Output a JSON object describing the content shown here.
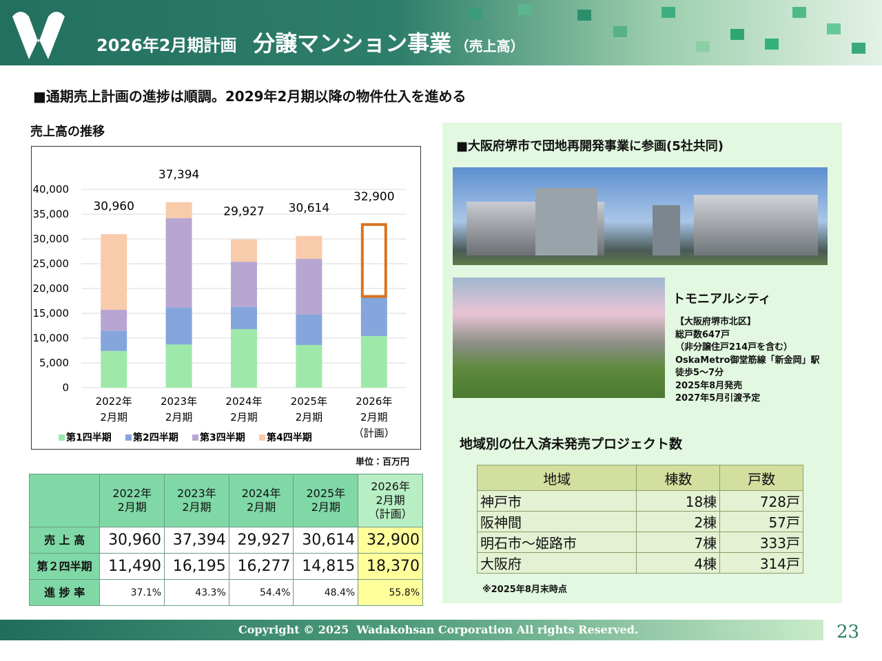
{
  "header": {
    "period": "2026年2月期計画",
    "title": "分譲マンション事業",
    "subtitle": "（売上高）"
  },
  "headline": "■通期売上計画の進捗は順調。2029年2月期以降の物件仕入を進める",
  "chart_data": {
    "type": "stacked-bar",
    "title": "売上高の推移",
    "unit_note": "単位：百万円",
    "categories": [
      [
        "2022年",
        "2月期"
      ],
      [
        "2023年",
        "2月期"
      ],
      [
        "2024年",
        "2月期"
      ],
      [
        "2025年",
        "2月期"
      ],
      [
        "2026年",
        "2月期",
        "（計画）"
      ]
    ],
    "series": [
      {
        "name": "第1四半期",
        "color": "#9ee9a9",
        "values": [
          7400,
          8700,
          11800,
          8600,
          10400
        ]
      },
      {
        "name": "第2四半期",
        "color": "#85a6dc",
        "values": [
          4100,
          7500,
          4500,
          6200,
          8000
        ]
      },
      {
        "name": "第3四半期",
        "color": "#b8a6d2",
        "values": [
          4200,
          18000,
          9100,
          11200,
          null
        ]
      },
      {
        "name": "第4四半期",
        "color": "#f8cbab",
        "values": [
          15260,
          3200,
          4500,
          4600,
          null
        ]
      }
    ],
    "totals": {
      "values": [
        30960,
        37394,
        29927,
        30614,
        32900
      ],
      "value_labels": [
        "30,960",
        "37,394",
        "29,927",
        "30,614",
        "32,900"
      ]
    },
    "outline_color": "#d9731f",
    "ylim": [
      0,
      40000
    ],
    "yticks": [
      0,
      {
        "value": 5000,
        "label": "5,000"
      },
      {
        "value": 10000,
        "label": "10,000"
      },
      {
        "value": 15000,
        "label": "15,000"
      },
      {
        "value": 20000,
        "label": "20,000"
      },
      {
        "value": 25000,
        "label": "25,000"
      },
      {
        "value": 30000,
        "label": "30,000"
      },
      {
        "value": 35000,
        "label": "35,000"
      },
      {
        "value": 40000,
        "label": "40,000"
      }
    ],
    "grid": true
  },
  "sales_table": {
    "columns": [
      [
        "2022年",
        "2月期"
      ],
      [
        "2023年",
        "2月期"
      ],
      [
        "2024年",
        "2月期"
      ],
      [
        "2025年",
        "2月期"
      ],
      [
        "2026年",
        "2月期",
        "（計画）"
      ]
    ],
    "rows": [
      {
        "label": "売 上 高",
        "cells": [
          "30,960",
          "37,394",
          "29,927",
          "30,614",
          "32,900"
        ]
      },
      {
        "label": "第２四半期",
        "cells": [
          "11,490",
          "16,195",
          "16,277",
          "14,815",
          "18,370"
        ]
      },
      {
        "label": "進 捗 率",
        "cells": [
          "37.1%",
          "43.3%",
          "54.4%",
          "48.4%",
          "55.8%"
        ]
      }
    ]
  },
  "project": {
    "heading": "■大阪府堺市で団地再開発事業に参画(5社共同)",
    "name": "トモニアルシティ",
    "details": [
      "【大阪府堺市北区】",
      "総戸数647戸",
      "（非分譲住戸214戸を含む）",
      "OskaMetro御堂筋線「新金岡」駅",
      "徒歩5～7分",
      "2025年8月発売",
      "2027年5月引渡予定"
    ]
  },
  "region_table": {
    "title": "地域別の仕入済未発売プロジェクト数",
    "columns": [
      "地域",
      "棟数",
      "戸数"
    ],
    "rows": [
      [
        "神戸市",
        "18棟",
        "728戸"
      ],
      [
        "阪神間",
        "2棟",
        "57戸"
      ],
      [
        "明石市～姫路市",
        "7棟",
        "333戸"
      ],
      [
        "大阪府",
        "4棟",
        "314戸"
      ]
    ],
    "note": "※2025年8月末時点"
  },
  "footer": {
    "copyright": "Copyright © 2025  Wadakohsan Corporation All rights Reserved.",
    "page": "23"
  }
}
